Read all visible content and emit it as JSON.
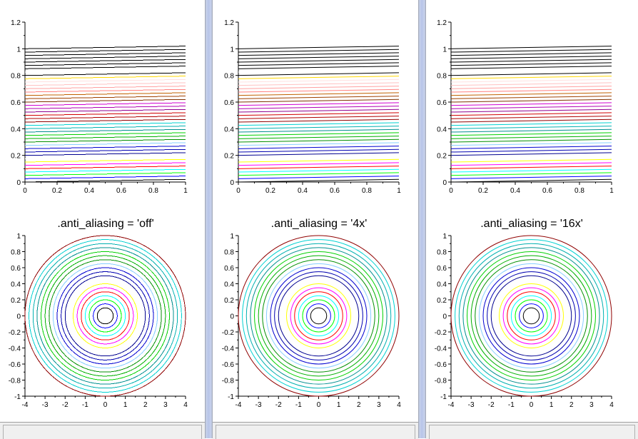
{
  "colormap": [
    "#000000",
    "#0000ff",
    "#00ff00",
    "#00ffff",
    "#ff0000",
    "#ff00ff",
    "#ffff00",
    "#ffffff",
    "#00008f",
    "#0000b0",
    "#0000d1",
    "#87ceff",
    "#008f00",
    "#00b000",
    "#00d100",
    "#008f8f",
    "#00b0b0",
    "#00d1d1",
    "#8f0000",
    "#b00000",
    "#d10000",
    "#8f008f",
    "#b000b0",
    "#d100d1",
    "#803000",
    "#a04000",
    "#c06000",
    "#ff8080",
    "#ffa0a0",
    "#ffc0c0",
    "#ffe0e0",
    "#ffd700",
    "#000000",
    "#ffffff",
    "#000000",
    "#000000",
    "#000000",
    "#000000",
    "#000000",
    "#000000",
    "#000000"
  ],
  "chart_data": [
    {
      "panel": 1,
      "title": ".anti_aliasing = 'off'",
      "top": {
        "type": "line",
        "xlim": [
          0,
          1
        ],
        "ylim": [
          0,
          1.2
        ],
        "xticks": [
          "0",
          "0.2",
          "0.4",
          "0.6",
          "0.8",
          "1"
        ],
        "yticks": [
          "0",
          "0.2",
          "0.4",
          "0.6",
          "0.8",
          "1",
          "1.2"
        ],
        "line_count": 41,
        "line_spacing": 0.025,
        "line_slope": 0.02
      },
      "bottom": {
        "type": "line",
        "xlim": [
          -4,
          4
        ],
        "ylim": [
          -1,
          1
        ],
        "xticks": [
          "-4",
          "-3",
          "-2",
          "-1",
          "0",
          "1",
          "2",
          "3",
          "4"
        ],
        "yticks": [
          "-1",
          "-0.8",
          "-0.6",
          "-0.4",
          "-0.2",
          "0",
          "0.2",
          "0.4",
          "0.6",
          "0.8",
          "1"
        ],
        "circle_count": 19,
        "radius_step": 0.05
      }
    },
    {
      "panel": 2,
      "title": ".anti_aliasing = '4x'",
      "top": {
        "type": "line",
        "xlim": [
          0,
          1
        ],
        "ylim": [
          0,
          1.2
        ],
        "xticks": [
          "0",
          "0.2",
          "0.4",
          "0.6",
          "0.8",
          "1"
        ],
        "yticks": [
          "0",
          "0.2",
          "0.4",
          "0.6",
          "0.8",
          "1",
          "1.2"
        ],
        "line_count": 41,
        "line_spacing": 0.025,
        "line_slope": 0.02
      },
      "bottom": {
        "type": "line",
        "xlim": [
          -4,
          4
        ],
        "ylim": [
          -1,
          1
        ],
        "xticks": [
          "-4",
          "-3",
          "-2",
          "-1",
          "0",
          "1",
          "2",
          "3",
          "4"
        ],
        "yticks": [
          "-1",
          "-0.8",
          "-0.6",
          "-0.4",
          "-0.2",
          "0",
          "0.2",
          "0.4",
          "0.6",
          "0.8",
          "1"
        ],
        "circle_count": 19,
        "radius_step": 0.05
      }
    },
    {
      "panel": 3,
      "title": ".anti_aliasing = '16x'",
      "top": {
        "type": "line",
        "xlim": [
          0,
          1
        ],
        "ylim": [
          0,
          1.2
        ],
        "xticks": [
          "0",
          "0.2",
          "0.4",
          "0.6",
          "0.8",
          "1"
        ],
        "yticks": [
          "0",
          "0.2",
          "0.4",
          "0.6",
          "0.8",
          "1",
          "1.2"
        ],
        "line_count": 41,
        "line_spacing": 0.025,
        "line_slope": 0.02
      },
      "bottom": {
        "type": "line",
        "xlim": [
          -4,
          4
        ],
        "ylim": [
          -1,
          1
        ],
        "xticks": [
          "-4",
          "-3",
          "-2",
          "-1",
          "0",
          "1",
          "2",
          "3",
          "4"
        ],
        "yticks": [
          "-1",
          "-0.8",
          "-0.6",
          "-0.4",
          "-0.2",
          "0",
          "0.2",
          "0.4",
          "0.6",
          "0.8",
          "1"
        ],
        "circle_count": 19,
        "radius_step": 0.05
      }
    }
  ]
}
